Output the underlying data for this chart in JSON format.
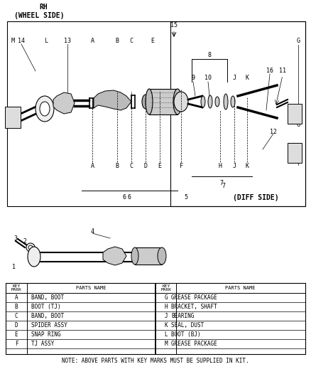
{
  "title_line1": "RH",
  "title_line2": "(WHEEL SIDE)",
  "diff_side_label": "(DIFF SIDE)",
  "note": "NOTE: ABOVE PARTS WITH KEY MARKS MUST BE SUPPLIED IN KIT.",
  "table_headers": [
    "KEY\nMARK",
    "PARTS NAME",
    "KEY\nMARK",
    "PARTS NAME"
  ],
  "table_left": [
    [
      "A",
      "BAND, BOOT"
    ],
    [
      "B",
      "BOOT (TJ)"
    ],
    [
      "C",
      "BAND, BOOT"
    ],
    [
      "D",
      "SPIDER ASSY"
    ],
    [
      "E",
      "SNAP RING"
    ],
    [
      "F",
      "TJ ASSY"
    ]
  ],
  "table_right": [
    [
      "G",
      "GREASE PACKAGE"
    ],
    [
      "H",
      "BRACKET, SHAFT"
    ],
    [
      "J",
      "BEARING"
    ],
    [
      "K",
      "SEAL, DUST"
    ],
    [
      "L",
      "BOOT (BJ)"
    ],
    [
      "M",
      "GREASE PACKAGE"
    ]
  ],
  "bg_color": "#ffffff",
  "line_color": "#000000",
  "text_color": "#000000"
}
